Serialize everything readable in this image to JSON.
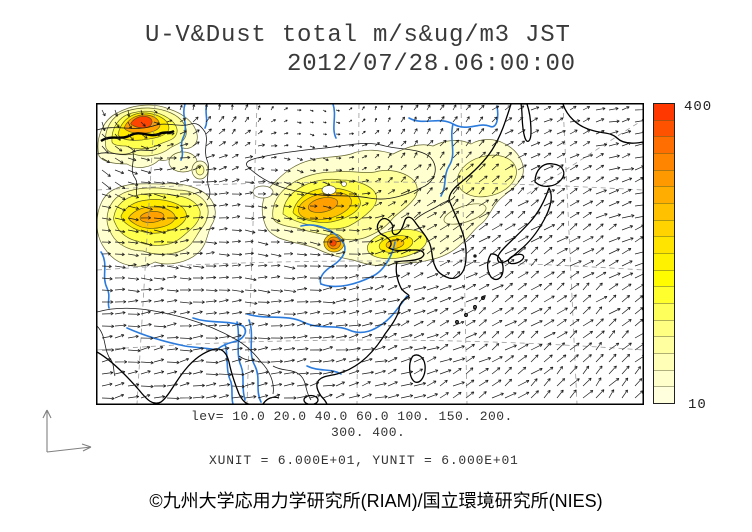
{
  "title": {
    "line1": "U-V&Dust total m/s&ug/m3 JST",
    "line2": "2012/07/28.06:00:00"
  },
  "colorbar": {
    "max_label": "400",
    "min_label": "10",
    "colors_top_to_bottom": [
      "#FF3800",
      "#FF5200",
      "#FF6E00",
      "#FF8400",
      "#FF9900",
      "#FFAD00",
      "#FFC100",
      "#FFD300",
      "#FFE400",
      "#FFF200",
      "#FFFC00",
      "#FFFF2E",
      "#FFFF5C",
      "#FFFF82",
      "#FFFFA0",
      "#FFFFB8",
      "#FFFFCC",
      "#FFFFDE"
    ]
  },
  "legend": {
    "levels_line1": "lev= 10.0 20.0 40.0 60.0 100. 150. 200.",
    "levels_line2": "300. 400.",
    "units_line": "XUNIT = 6.000E+01, YUNIT = 6.000E+01"
  },
  "footer": {
    "copyright": "©九州大学応用力学研究所(RIAM)/国立環境研究所(NIES)"
  },
  "chart_data": {
    "type": "heatmap",
    "subtype": "dust_concentration_contour_map_with_wind_vectors",
    "title": "U-V&Dust total m/s&ug/m3 JST",
    "valid_time": "2012/07/28.06:00:00",
    "variables": {
      "vectors": "U-V wind (m/s)",
      "shading": "Dust total (ug/m3)"
    },
    "contour_levels": [
      10,
      20,
      40,
      60,
      100,
      150,
      200,
      300,
      400
    ],
    "colorbar_range": [
      10,
      400
    ],
    "xunit": "6.000E+01",
    "yunit": "6.000E+01",
    "region": "East Asia (approx. 60E-155E, 5N-55N)",
    "legend_position": "right",
    "features": [
      {
        "name": "intense dust plume near Lake Balkhash / E. Kazakhstan (red-orange core)",
        "peak_level": 400
      },
      {
        "name": "dust plume over Taklamakan / Tarim basin",
        "peak_level": 150
      },
      {
        "name": "broad dust area over Gobi / Loess plateau with orange local maximum near Bohai coast",
        "peak_level": 300
      },
      {
        "name": "pale dust (10-20 ug/m3) over Manchuria / NE China",
        "peak_level": 20
      },
      {
        "name": "wind vectors: SW monsoon flow over S/SE Asia, southerlies east of Japan, weak winds near subtropical high SE of Japan",
        "peak_level": null
      }
    ]
  }
}
